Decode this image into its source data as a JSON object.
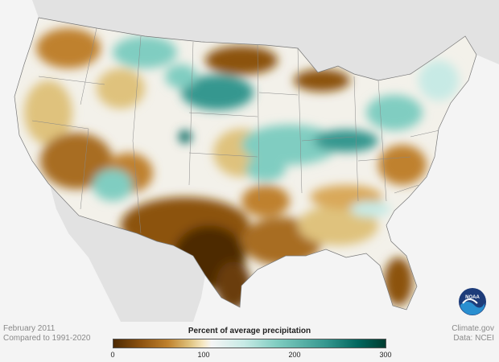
{
  "map": {
    "name": "Contiguous United States",
    "colors": {
      "very_dry": "#4d2a04",
      "dry": "#bf812d",
      "slightly_dry": "#f6e8c3",
      "normal": "#f5f5f5",
      "wet": "#80cdc1",
      "very_wet": "#01665e",
      "background_land": "#e2e2e2",
      "ocean": "#f4f4f4"
    }
  },
  "footer": {
    "period": "February 2011",
    "baseline": "Compared to 1991-2020",
    "credit": "Climate.gov",
    "source": "Data: NCEI"
  },
  "legend": {
    "title": "Percent of average precipitation",
    "ticks": [
      "0",
      "100",
      "200",
      "300"
    ]
  },
  "logo": {
    "text": "NOAA",
    "icon": "noaa-logo-icon"
  }
}
